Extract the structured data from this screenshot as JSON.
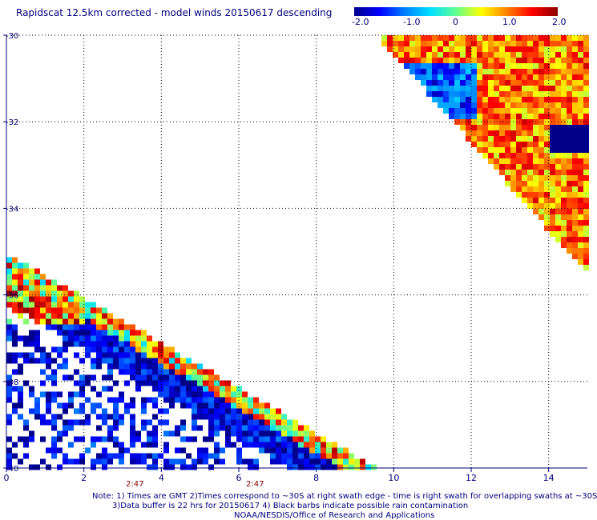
{
  "title": "Rapidscat 12.5km corrected - model winds 20150617 descending",
  "colorbar": {
    "labels": [
      "-2.0",
      "-1.0",
      "0",
      "1.0",
      "2.0"
    ],
    "values": [
      -2.0,
      -1.0,
      0,
      1.0,
      2.0
    ],
    "colors": [
      "#00008b",
      "#0000ff",
      "#0080ff",
      "#00e0ff",
      "#60ff90",
      "#ffff00",
      "#ff8000",
      "#ff0000",
      "#8b0000"
    ]
  },
  "time_labels": [
    "2:47",
    "2:47"
  ],
  "notes": [
    "Note: 1) Times are GMT 2)Times correspond to ~30S at right swath edge - time is right swath for overlapping swaths at ~30S",
    "3)Data buffer is 22 hrs for 20150617 4) Black barbs indicate possible rain contamination",
    "NOAA/NESDIS/Office of Research and Applications"
  ],
  "chart_data": {
    "type": "heatmap",
    "title": "Rapidscat 12.5km corrected - model winds 20150617 descending",
    "x_ticks": [
      "0",
      "2",
      "4",
      "6",
      "8",
      "10",
      "12",
      "14"
    ],
    "x_tick_values": [
      0,
      2,
      4,
      6,
      8,
      10,
      12,
      14
    ],
    "y_ticks": [
      "-30",
      "-32",
      "-34",
      "-36",
      "-38",
      "-40"
    ],
    "y_tick_values": [
      -30,
      -32,
      -34,
      -36,
      -38,
      -40
    ],
    "xlim": [
      0,
      15
    ],
    "ylim": [
      -40,
      -30
    ],
    "zlim": [
      -2.0,
      2.0
    ],
    "grid": true,
    "swaths": [
      {
        "region": "upper-right",
        "x_range": [
          9.7,
          15
        ],
        "y_range": [
          -35.4,
          -30
        ],
        "mean_difference": 1.0,
        "note": "mostly positive differences (orange/red), band of negative (blue) near -31 to -32"
      },
      {
        "region": "lower-left",
        "x_range": [
          0,
          9.6
        ],
        "y_range": [
          -40,
          -35.0
        ],
        "mean_difference": -1.0,
        "note": "positive (red) near top-left edge, mostly negative (blue) below"
      }
    ]
  }
}
